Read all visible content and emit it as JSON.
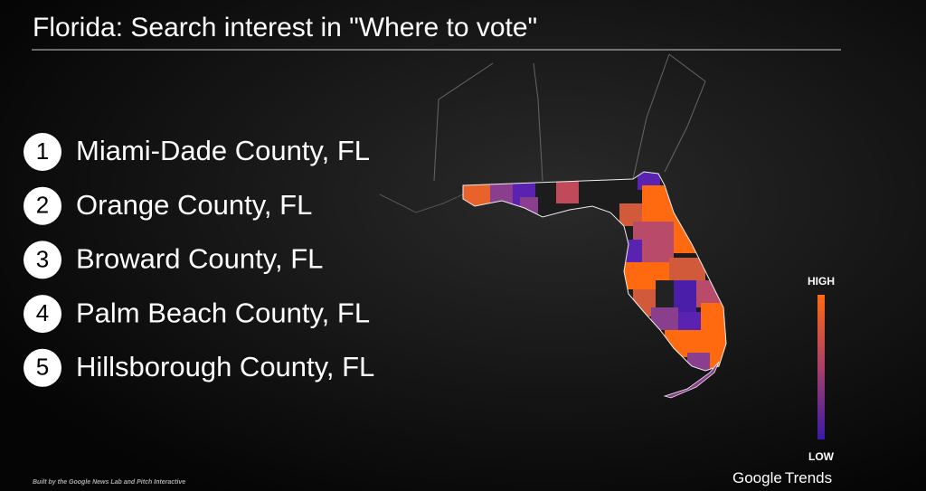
{
  "header": {
    "title": "Florida: Search interest in \"Where to vote\""
  },
  "rankings": [
    {
      "rank": 1,
      "name": "Miami-Dade County, FL"
    },
    {
      "rank": 2,
      "name": "Orange County, FL"
    },
    {
      "rank": 3,
      "name": "Broward County, FL"
    },
    {
      "rank": 4,
      "name": "Palm Beach County, FL"
    },
    {
      "rank": 5,
      "name": "Hillsborough County, FL"
    }
  ],
  "legend": {
    "high": "HIGH",
    "low": "LOW"
  },
  "footer": {
    "credit": "Built by the Google News Lab and Pitch Interactive",
    "brand": "Google",
    "brand_product": "Trends"
  }
}
